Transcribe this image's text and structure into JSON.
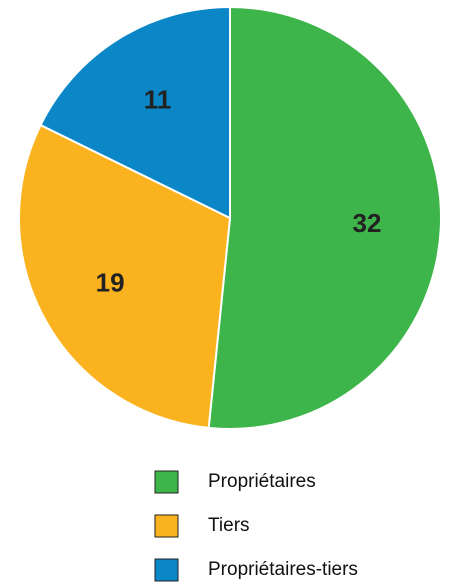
{
  "chart_data": {
    "type": "pie",
    "categories": [
      "Propriétaires",
      "Tiers",
      "Propriétaires-tiers"
    ],
    "values": [
      32,
      19,
      11
    ],
    "colors": [
      "#3db54a",
      "#fbb21f",
      "#0b87c8"
    ]
  }
}
